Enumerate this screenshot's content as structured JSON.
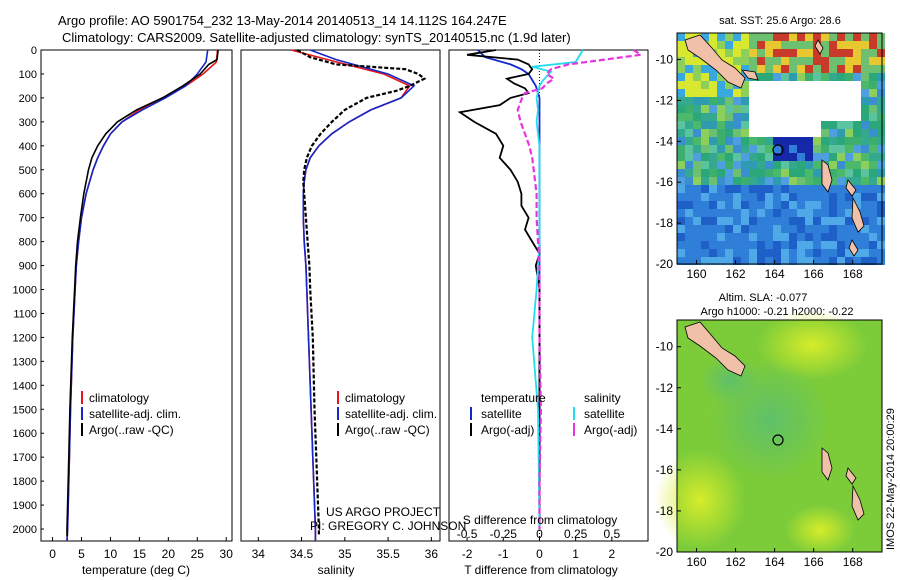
{
  "header": {
    "line1": "Argo profile: AO 5901754_232 13-May-2014 20140513_14 14.112S 164.247E",
    "line2": "Climatology: CARS2009. Satellite-adjusted climatology: synTS_20140515.nc (1.9d later)"
  },
  "colors": {
    "climatology": "#e8141c",
    "satellite": "#1428c8",
    "argo": "#000000",
    "sal_satellite": "#22dcef",
    "sal_argo": "#e833e0"
  },
  "y_ticks": [
    "0",
    "100",
    "200",
    "300",
    "400",
    "500",
    "600",
    "700",
    "800",
    "900",
    "1000",
    "1100",
    "1200",
    "1300",
    "1400",
    "1500",
    "1600",
    "1700",
    "1800",
    "1900",
    "2000"
  ],
  "panel_temp": {
    "xlabel": "temperature (deg C)",
    "xticks": [
      "0",
      "5",
      "10",
      "15",
      "20",
      "25",
      "30"
    ],
    "legend": [
      "climatology",
      "satellite-adj. clim.",
      "Argo(..raw -QC)"
    ]
  },
  "panel_sal": {
    "xlabel": "salinity",
    "xticks": [
      "34",
      "34.5",
      "35",
      "35.5",
      "36"
    ],
    "legend": [
      "climatology",
      "satellite-adj. clim.",
      "Argo(..raw -QC)"
    ],
    "credit1": "US ARGO PROJECT",
    "credit2": "PI: GREGORY C. JOHNSON"
  },
  "panel_diff": {
    "xlabel": "T difference from climatology",
    "xticks": [
      "-2",
      "-1",
      "0",
      "1",
      "2"
    ],
    "top_label": "S difference from climatology",
    "top_ticks": [
      "-0.5",
      "-0.25",
      "0",
      "0.25",
      "0.5"
    ],
    "legend_t_title": "temperature",
    "legend_s_title": "salinity",
    "legend_t": [
      "satellite",
      "Argo(-adj)"
    ],
    "legend_s": [
      "satellite",
      "Argo(-adj)"
    ]
  },
  "map_sst": {
    "title": "sat. SST: 25.6 Argo: 28.6",
    "xticks": [
      "160",
      "162",
      "164",
      "166",
      "168"
    ],
    "yticks": [
      "-10",
      "-12",
      "-14",
      "-16",
      "-18",
      "-20"
    ]
  },
  "map_sla": {
    "title1": "Altim. SLA: -0.077",
    "title2": "Argo h1000: -0.21 h2000: -0.22",
    "xticks": [
      "160",
      "162",
      "164",
      "166",
      "168"
    ],
    "yticks": [
      "-10",
      "-12",
      "-14",
      "-16",
      "-18",
      "-20"
    ]
  },
  "side_stamp": "IMOS 22-May-2014 20:00:29",
  "chart_data": [
    {
      "type": "line",
      "xlabel": "temperature (deg C)",
      "xlim": [
        -2,
        31
      ],
      "ylim": [
        2050,
        0
      ],
      "series": [
        {
          "name": "climatology",
          "depth": [
            0,
            50,
            100,
            150,
            200,
            250,
            300,
            350,
            400,
            450,
            500,
            600,
            700,
            800,
            900,
            1000,
            1200,
            1500,
            1700,
            2000,
            2050
          ],
          "values": [
            28.5,
            28.3,
            26.0,
            23.0,
            19.0,
            15.0,
            12.0,
            10.0,
            8.8,
            7.8,
            7.0,
            5.8,
            5.0,
            4.5,
            4.1,
            3.9,
            3.5,
            3.1,
            2.9,
            2.6,
            2.5
          ]
        },
        {
          "name": "satellite-adj. clim.",
          "depth": [
            0,
            50,
            100,
            150,
            200,
            250,
            300,
            350,
            400,
            450,
            500,
            600,
            700,
            800,
            900,
            1000,
            1200,
            1500,
            1700,
            2000,
            2050
          ],
          "values": [
            26.8,
            26.5,
            25.0,
            23.0,
            19.5,
            15.5,
            12.0,
            10.0,
            8.8,
            7.8,
            7.0,
            5.8,
            5.0,
            4.5,
            4.1,
            3.9,
            3.5,
            3.1,
            2.9,
            2.6,
            2.5
          ]
        },
        {
          "name": "Argo(..raw -QC)",
          "depth": [
            0,
            40,
            60,
            100,
            150,
            200,
            250,
            300,
            350,
            400,
            450,
            500,
            600,
            700,
            800,
            900,
            1000,
            1200,
            1500,
            1700,
            2000,
            2030
          ],
          "values": [
            28.6,
            28.4,
            27.0,
            25.5,
            22.5,
            19.0,
            14.5,
            11.2,
            9.2,
            7.8,
            6.8,
            6.2,
            5.4,
            4.8,
            4.3,
            4.0,
            3.8,
            3.4,
            3.0,
            2.8,
            2.5,
            2.5
          ]
        }
      ]
    },
    {
      "type": "line",
      "xlabel": "salinity",
      "xlim": [
        33.8,
        36.1
      ],
      "ylim": [
        2050,
        0
      ],
      "series": [
        {
          "name": "climatology",
          "depth": [
            0,
            40,
            100,
            150,
            200,
            250,
            300,
            350,
            400,
            450,
            500,
            550,
            600,
            700,
            800,
            900,
            1000,
            1200,
            1500,
            1700,
            2000,
            2050
          ],
          "values": [
            34.38,
            34.8,
            35.45,
            35.75,
            35.65,
            35.3,
            35.05,
            34.85,
            34.7,
            34.6,
            34.55,
            34.53,
            34.52,
            34.52,
            34.53,
            34.55,
            34.56,
            34.58,
            34.61,
            34.63,
            34.66,
            34.66
          ]
        },
        {
          "name": "satellite-adj. clim.",
          "depth": [
            0,
            40,
            100,
            150,
            200,
            250,
            300,
            350,
            400,
            450,
            500,
            550,
            600,
            700,
            800,
            900,
            1000,
            1200,
            1500,
            1700,
            2000,
            2050
          ],
          "values": [
            34.6,
            34.9,
            35.5,
            35.8,
            35.65,
            35.3,
            35.05,
            34.85,
            34.7,
            34.6,
            34.55,
            34.53,
            34.52,
            34.52,
            34.53,
            34.55,
            34.56,
            34.58,
            34.61,
            34.63,
            34.66,
            34.66
          ]
        },
        {
          "name": "Argo(..raw -QC)",
          "depth": [
            0,
            30,
            60,
            80,
            100,
            120,
            150,
            170,
            200,
            250,
            300,
            350,
            400,
            450,
            500,
            550,
            600,
            700,
            800,
            900,
            1000,
            1200,
            1500,
            1700,
            2000,
            2030
          ],
          "values": [
            34.45,
            34.6,
            34.9,
            35.7,
            35.85,
            35.92,
            35.75,
            35.6,
            35.25,
            35.0,
            34.85,
            34.72,
            34.62,
            34.56,
            34.53,
            34.52,
            34.53,
            34.55,
            34.57,
            34.59,
            34.6,
            34.63,
            34.65,
            34.67,
            34.7,
            34.7
          ]
        }
      ]
    },
    {
      "type": "line",
      "xlabel": "T difference from climatology",
      "top_label": "S difference from climatology",
      "xlim": [
        -2.5,
        3
      ],
      "s_xlim": [
        -0.625,
        0.75
      ],
      "ylim": [
        2050,
        0
      ],
      "series": [
        {
          "name": "satellite",
          "quantity": "temperature",
          "depth": [
            0,
            30,
            60,
            80,
            100,
            150,
            200,
            250,
            300,
            400,
            500,
            600,
            800,
            1000,
            1500,
            2000
          ],
          "values": [
            -1.7,
            -1.5,
            -0.8,
            -0.5,
            -0.3,
            -0.1,
            0.0,
            0.0,
            0.0,
            0.0,
            0.0,
            0.0,
            0.0,
            0.0,
            0.0,
            0.0
          ]
        },
        {
          "name": "Argo(-adj)",
          "quantity": "temperature",
          "depth": [
            0,
            20,
            40,
            60,
            80,
            100,
            120,
            140,
            160,
            180,
            200,
            230,
            260,
            300,
            350,
            400,
            450,
            500,
            550,
            600,
            650,
            700,
            750,
            800,
            850,
            900,
            1000,
            1500,
            2000
          ],
          "values": [
            -1.2,
            -2.0,
            -0.6,
            -0.3,
            -0.2,
            -0.3,
            -0.9,
            -0.7,
            -0.4,
            -0.3,
            -0.8,
            -1.1,
            -2.2,
            -1.8,
            -1.2,
            -1.0,
            -1.1,
            -0.8,
            -0.6,
            -0.5,
            -0.5,
            -0.3,
            -0.4,
            -0.2,
            0.0,
            -0.1,
            0.0,
            0.0,
            0.0
          ]
        },
        {
          "name": "satellite",
          "quantity": "salinity",
          "depth": [
            0,
            50,
            70,
            90,
            110,
            130,
            150,
            200,
            250,
            300,
            400,
            500,
            600,
            800,
            1000,
            1200,
            1500,
            2000
          ],
          "values": [
            0.3,
            0.25,
            -0.05,
            0.08,
            0.05,
            0.02,
            0.0,
            -0.02,
            -0.01,
            -0.02,
            0.0,
            0.0,
            0.0,
            0.0,
            -0.02,
            -0.05,
            -0.01,
            0.0
          ]
        },
        {
          "name": "Argo(-adj)",
          "quantity": "salinity",
          "depth": [
            0,
            20,
            40,
            60,
            80,
            100,
            120,
            140,
            160,
            180,
            200,
            250,
            300,
            350,
            400,
            450,
            500,
            600,
            700,
            800,
            900,
            1000,
            1100,
            1200,
            1500,
            1800,
            2000
          ],
          "values": [
            0.65,
            0.7,
            0.45,
            0.2,
            0.08,
            0.05,
            0.1,
            0.05,
            0.02,
            -0.1,
            -0.12,
            -0.15,
            -0.13,
            -0.1,
            -0.07,
            -0.05,
            -0.04,
            -0.02,
            -0.02,
            -0.01,
            0.0,
            0.0,
            0.0,
            0.0,
            0.01,
            0.0,
            0.0
          ]
        }
      ]
    }
  ]
}
